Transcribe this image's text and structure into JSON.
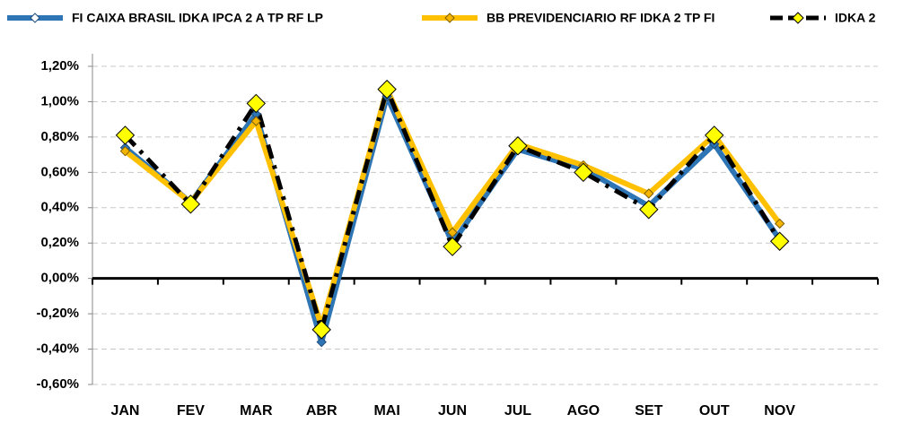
{
  "chart_data": {
    "type": "line",
    "categories": [
      "JAN",
      "FEV",
      "MAR",
      "ABR",
      "MAI",
      "JUN",
      "JUL",
      "AGO",
      "SET",
      "OUT",
      "NOV",
      null
    ],
    "series": [
      {
        "name": "FI CAIXA BRASIL IDKA IPCA 2 A TP RF LP",
        "color": "#2e75b6",
        "marker_color": "#2e75b6",
        "values": [
          0.74,
          0.43,
          0.93,
          -0.36,
          1.03,
          0.2,
          0.73,
          0.62,
          0.41,
          0.76,
          0.22,
          null
        ]
      },
      {
        "name": "BB PREVIDENCIARIO RF IDKA 2 TP FI",
        "color": "#ffc000",
        "marker_color": "#f5b400",
        "values": [
          0.72,
          0.43,
          0.89,
          -0.27,
          1.07,
          0.26,
          0.76,
          0.64,
          0.48,
          0.81,
          0.31,
          null
        ]
      },
      {
        "name": "IDKA 2",
        "color": "#000000",
        "marker_color": "#ffff00",
        "values": [
          0.81,
          0.42,
          0.99,
          -0.29,
          1.07,
          0.18,
          0.75,
          0.6,
          0.39,
          0.81,
          0.21,
          null
        ]
      }
    ],
    "ylim": [
      -0.6,
      1.2
    ],
    "yticks": [
      {
        "value": -0.6,
        "label": "-0,60%"
      },
      {
        "value": -0.4,
        "label": "-0,40%"
      },
      {
        "value": -0.2,
        "label": "-0,20%"
      },
      {
        "value": 0,
        "label": "0,00%"
      },
      {
        "value": 0.2,
        "label": "0,20%"
      },
      {
        "value": 0.4,
        "label": "0,40%"
      },
      {
        "value": 0.6,
        "label": "0,60%"
      },
      {
        "value": 0.8,
        "label": "0,80%"
      },
      {
        "value": 1.0,
        "label": "1,00%"
      },
      {
        "value": 1.2,
        "label": "1,20%"
      }
    ],
    "grid": true,
    "legend": "top"
  }
}
